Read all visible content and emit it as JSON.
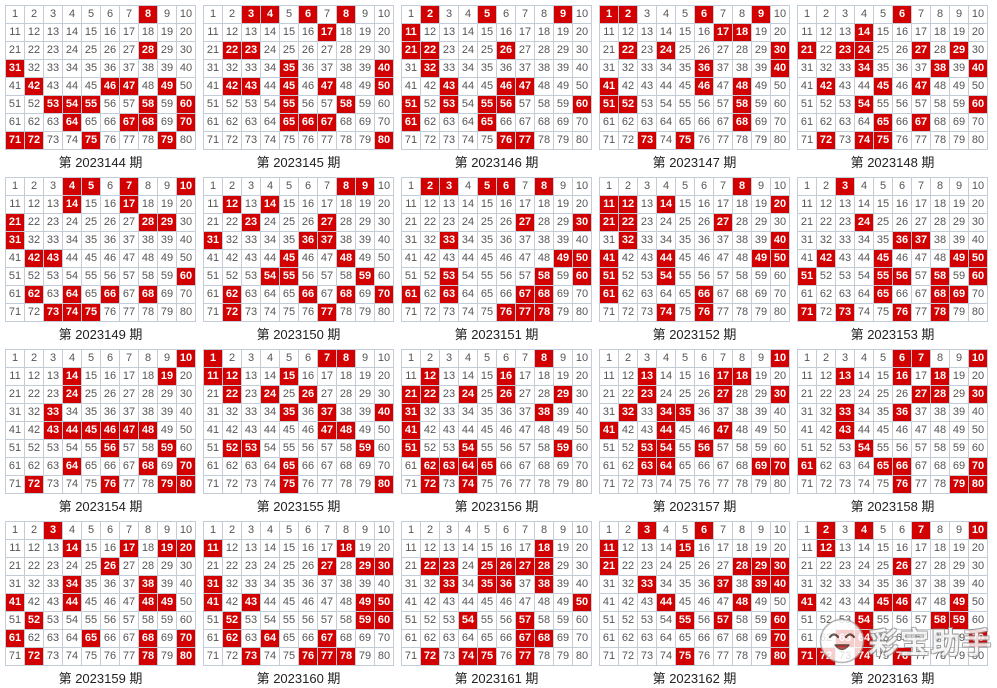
{
  "colors": {
    "hit_bg": "#d20000",
    "hit_text": "#ffffff",
    "number_text": "#555555",
    "cell_border": "#c3ccd7",
    "outer_border": "#aeb9c6"
  },
  "board": {
    "columns_per_grid": 10,
    "rows_per_grid": 8,
    "numbers_min": 1,
    "numbers_max": 80
  },
  "watermark": {
    "text": "彩宝助手",
    "icon": "mascot-face-icon"
  },
  "panels": [
    {
      "period": "2023144",
      "label": "第 2023144 期",
      "hits": [
        8,
        28,
        31,
        42,
        46,
        47,
        49,
        53,
        54,
        55,
        58,
        60,
        64,
        67,
        68,
        70,
        71,
        72,
        75,
        79
      ]
    },
    {
      "period": "2023145",
      "label": "第 2023145 期",
      "hits": [
        3,
        4,
        6,
        8,
        17,
        22,
        23,
        35,
        40,
        42,
        43,
        45,
        47,
        50,
        55,
        58,
        65,
        66,
        67,
        80
      ]
    },
    {
      "period": "2023146",
      "label": "第 2023146 期",
      "hits": [
        2,
        5,
        9,
        11,
        21,
        22,
        26,
        32,
        43,
        46,
        47,
        51,
        53,
        55,
        56,
        60,
        61,
        65,
        76,
        77
      ]
    },
    {
      "period": "2023147",
      "label": "第 2023147 期",
      "hits": [
        1,
        2,
        6,
        9,
        17,
        18,
        22,
        24,
        30,
        36,
        40,
        41,
        46,
        48,
        51,
        52,
        58,
        68,
        73,
        75
      ]
    },
    {
      "period": "2023148",
      "label": "第 2023148 期",
      "hits": [
        6,
        14,
        21,
        23,
        24,
        27,
        29,
        34,
        38,
        40,
        42,
        45,
        47,
        54,
        60,
        65,
        67,
        72,
        74,
        75
      ]
    },
    {
      "period": "2023149",
      "label": "第 2023149 期",
      "hits": [
        4,
        5,
        7,
        10,
        14,
        17,
        21,
        28,
        29,
        31,
        42,
        43,
        60,
        62,
        64,
        66,
        68,
        73,
        74,
        75
      ]
    },
    {
      "period": "2023150",
      "label": "第 2023150 期",
      "hits": [
        8,
        9,
        12,
        14,
        23,
        27,
        31,
        36,
        37,
        45,
        48,
        54,
        55,
        59,
        62,
        66,
        68,
        70,
        72,
        77
      ]
    },
    {
      "period": "2023151",
      "label": "第 2023151 期",
      "hits": [
        2,
        3,
        5,
        6,
        8,
        27,
        30,
        33,
        49,
        50,
        53,
        58,
        60,
        61,
        63,
        67,
        68,
        76,
        77,
        78
      ]
    },
    {
      "period": "2023152",
      "label": "第 2023152 期",
      "hits": [
        8,
        11,
        12,
        14,
        20,
        21,
        22,
        27,
        32,
        40,
        41,
        44,
        49,
        50,
        51,
        54,
        61,
        66,
        74,
        76
      ]
    },
    {
      "period": "2023153",
      "label": "第 2023153 期",
      "hits": [
        3,
        24,
        36,
        37,
        42,
        45,
        49,
        50,
        51,
        55,
        56,
        58,
        60,
        65,
        68,
        69,
        71,
        73,
        76,
        78
      ]
    },
    {
      "period": "2023154",
      "label": "第 2023154 期",
      "hits": [
        10,
        14,
        19,
        24,
        33,
        43,
        44,
        45,
        46,
        47,
        48,
        56,
        59,
        64,
        68,
        70,
        72,
        76,
        79,
        80
      ]
    },
    {
      "period": "2023155",
      "label": "第 2023155 期",
      "hits": [
        1,
        7,
        8,
        11,
        12,
        15,
        22,
        24,
        26,
        35,
        37,
        40,
        47,
        48,
        52,
        53,
        59,
        65,
        75,
        80
      ]
    },
    {
      "period": "2023156",
      "label": "第 2023156 期",
      "hits": [
        8,
        12,
        16,
        21,
        22,
        24,
        26,
        29,
        31,
        38,
        41,
        51,
        54,
        59,
        62,
        63,
        64,
        65,
        72,
        74
      ]
    },
    {
      "period": "2023157",
      "label": "第 2023157 期",
      "hits": [
        10,
        13,
        17,
        18,
        23,
        27,
        30,
        32,
        34,
        35,
        41,
        44,
        47,
        53,
        54,
        56,
        63,
        64,
        69,
        70
      ]
    },
    {
      "period": "2023158",
      "label": "第 2023158 期",
      "hits": [
        6,
        7,
        10,
        13,
        16,
        18,
        27,
        28,
        30,
        33,
        36,
        43,
        54,
        61,
        65,
        66,
        70,
        76,
        79,
        80
      ]
    },
    {
      "period": "2023159",
      "label": "第 2023159 期",
      "hits": [
        3,
        14,
        17,
        19,
        20,
        26,
        34,
        38,
        41,
        44,
        48,
        49,
        52,
        61,
        65,
        68,
        70,
        72,
        78,
        80
      ]
    },
    {
      "period": "2023160",
      "label": "第 2023160 期",
      "hits": [
        11,
        18,
        27,
        29,
        30,
        31,
        41,
        43,
        49,
        50,
        52,
        59,
        60,
        62,
        64,
        67,
        73,
        76,
        77,
        78
      ]
    },
    {
      "period": "2023161",
      "label": "第 2023161 期",
      "hits": [
        18,
        22,
        23,
        25,
        26,
        27,
        28,
        33,
        35,
        36,
        38,
        50,
        54,
        57,
        67,
        68,
        72,
        74,
        75,
        77
      ]
    },
    {
      "period": "2023162",
      "label": "第 2023162 期",
      "hits": [
        3,
        6,
        11,
        15,
        21,
        28,
        29,
        30,
        33,
        37,
        39,
        40,
        44,
        48,
        55,
        57,
        60,
        70,
        75,
        80
      ]
    },
    {
      "period": "2023163",
      "label": "第 2023163 期",
      "hits": [
        2,
        4,
        7,
        10,
        12,
        26,
        41,
        45,
        46,
        49,
        54,
        58,
        59,
        63,
        64,
        70,
        71,
        72,
        74,
        76
      ]
    }
  ]
}
